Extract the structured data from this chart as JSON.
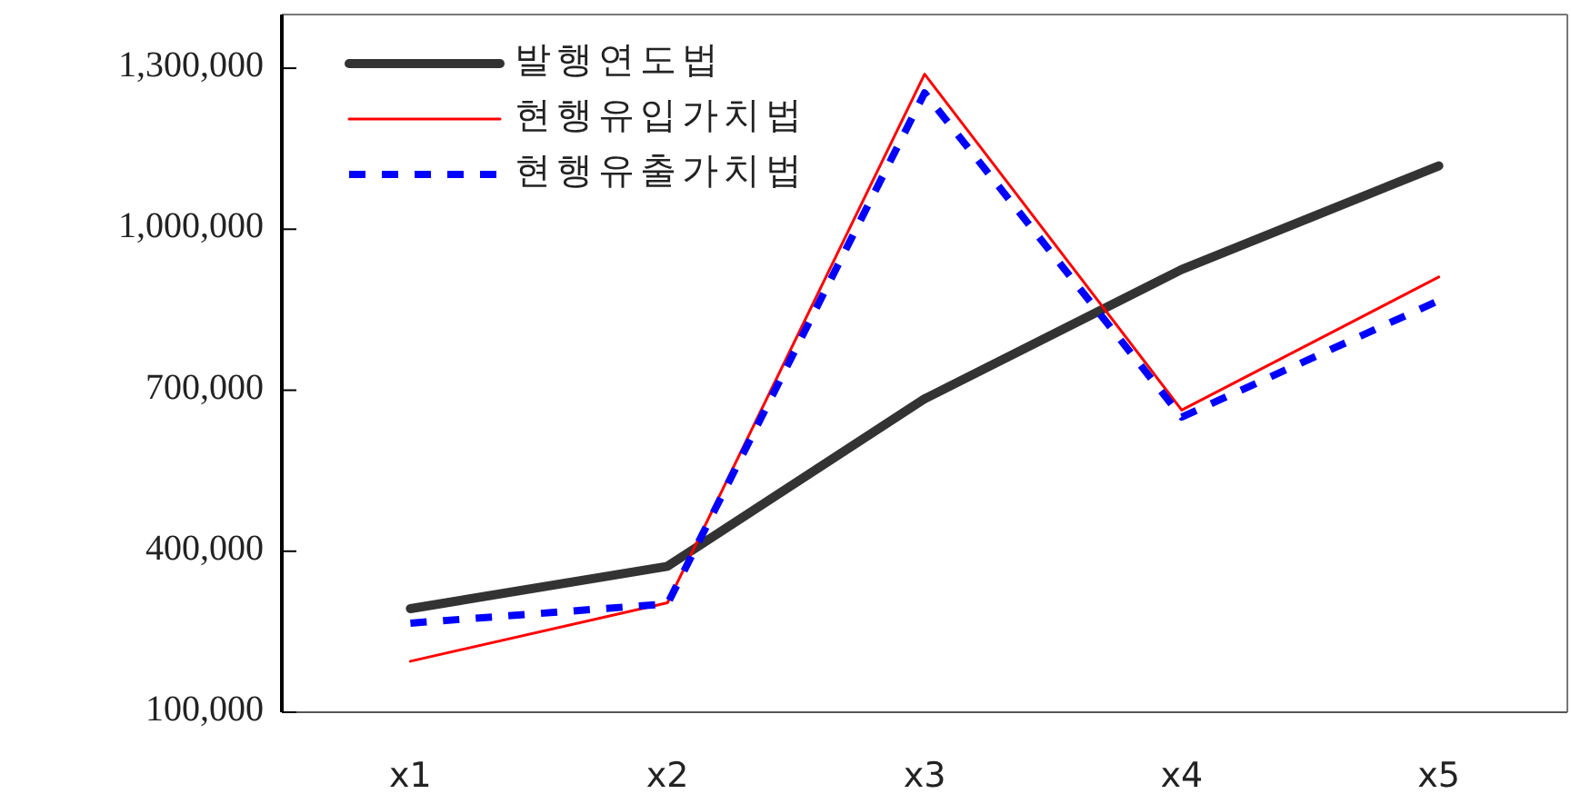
{
  "chart_data": {
    "type": "line",
    "categories": [
      "x1",
      "x2",
      "x3",
      "x4",
      "x5"
    ],
    "series": [
      {
        "name": "발행연도법",
        "color": "#333333",
        "line_style": "solid",
        "values": [
          293000,
          372000,
          684000,
          925000,
          1118000
        ]
      },
      {
        "name": "현행유입가치법",
        "color": "#ff0000",
        "line_style": "solid",
        "values": [
          195000,
          304000,
          1289000,
          663000,
          911000
        ]
      },
      {
        "name": "현행유출가치법",
        "color": "#0000ff",
        "line_style": "dashed",
        "values": [
          266000,
          302000,
          1254000,
          650000,
          867000
        ]
      }
    ],
    "ylim": [
      100000,
      1400000
    ],
    "yticks": [
      {
        "value": 100000,
        "label": "100,000"
      },
      {
        "value": 400000,
        "label": "400,000"
      },
      {
        "value": 700000,
        "label": "700,000"
      },
      {
        "value": 1000000,
        "label": "1,000,000"
      },
      {
        "value": 1300000,
        "label": "1,300,000"
      }
    ],
    "grid": false,
    "legend": "top left",
    "marker": "none"
  }
}
